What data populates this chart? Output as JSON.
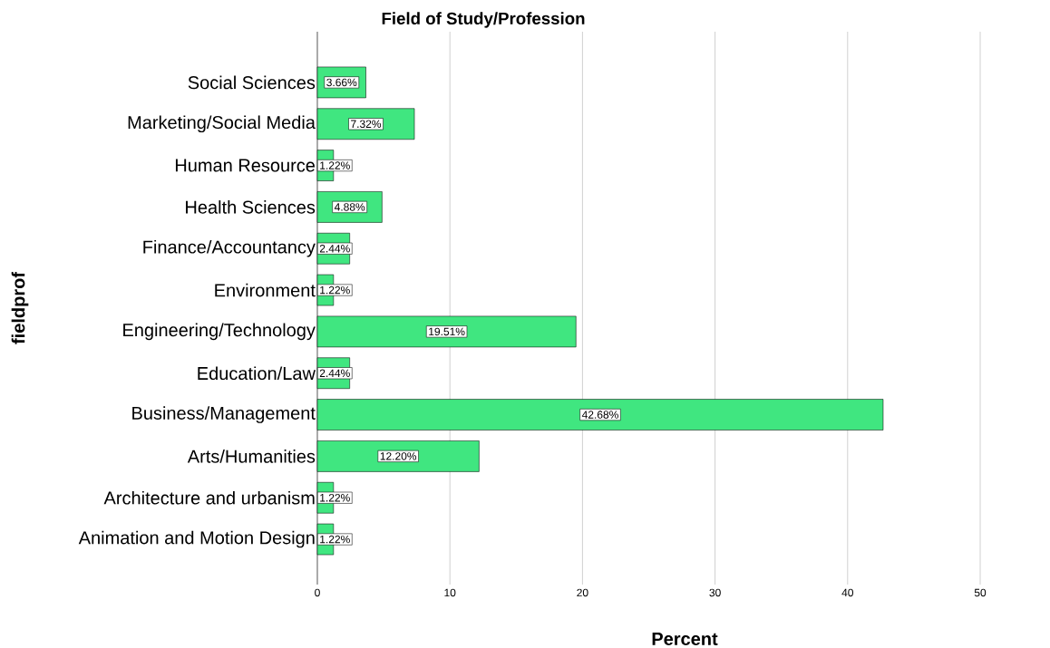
{
  "chart_data": {
    "type": "bar",
    "orientation": "horizontal",
    "title": "Field of Study/Profession",
    "xlabel": "Percent",
    "ylabel": "fieldprof",
    "categories": [
      "Social Sciences",
      "Marketing/Social Media",
      "Human Resource",
      "Health Sciences",
      "Finance/Accountancy",
      "Environment",
      "Engineering/Technology",
      "Education/Law",
      "Business/Management",
      "Arts/Humanities",
      "Architecture and urbanism",
      "Animation and Motion Design"
    ],
    "values": [
      3.66,
      7.32,
      1.22,
      4.88,
      2.44,
      1.22,
      19.51,
      2.44,
      42.68,
      12.2,
      1.22,
      1.22
    ],
    "value_labels": [
      "3.66%",
      "7.32%",
      "1.22%",
      "4.88%",
      "2.44%",
      "1.22%",
      "19.51%",
      "2.44%",
      "42.68%",
      "12.20%",
      "1.22%",
      "1.22%"
    ],
    "color": "#40e680",
    "xlim": [
      0,
      50
    ],
    "xticks": [
      0,
      10,
      20,
      30,
      40,
      50
    ],
    "grid": "x"
  }
}
